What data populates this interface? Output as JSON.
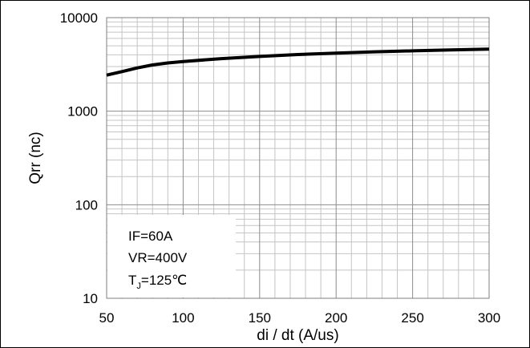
{
  "chart_data": {
    "type": "line",
    "xlabel": "di / dt (A/us)",
    "ylabel": "Qrr  (nc)",
    "xlim": [
      50,
      300
    ],
    "ylim": [
      10,
      10000
    ],
    "y_scale": "log",
    "x_ticks": [
      "50",
      "100",
      "150",
      "200",
      "250",
      "300"
    ],
    "y_ticks": [
      "10",
      "100",
      "1000",
      "10000"
    ],
    "grid": true,
    "series": [
      {
        "x": [
          50,
          60,
          70,
          80,
          90,
          100,
          125,
          150,
          175,
          200,
          225,
          250,
          275,
          300
        ],
        "y": [
          2430,
          2650,
          2900,
          3120,
          3280,
          3400,
          3650,
          3850,
          4030,
          4180,
          4310,
          4420,
          4510,
          4600
        ],
        "color": "#000000"
      }
    ],
    "annotations": {
      "if": "IF=60A",
      "vr": "VR=400V",
      "tj_prefix": "T",
      "tj_sub": "J",
      "tj_suffix": "=125℃"
    }
  }
}
